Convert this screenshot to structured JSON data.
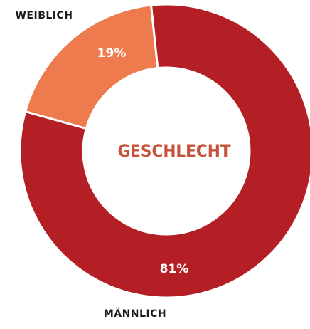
{
  "chart_data": {
    "type": "pie",
    "title": "GESCHLECHT",
    "categories": [
      "MÄNNLICH",
      "WEIBLICH"
    ],
    "values": [
      81,
      19
    ],
    "value_labels": [
      "81%",
      "19%"
    ],
    "colors": [
      "#b31f24",
      "#ee7b4d"
    ]
  }
}
